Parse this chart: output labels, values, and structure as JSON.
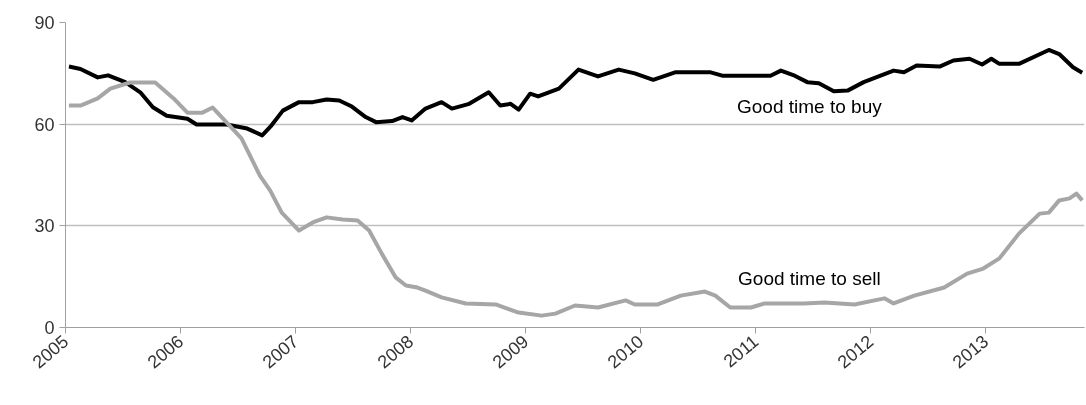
{
  "chart_data": {
    "type": "line",
    "xlim": [
      2005,
      2013.86
    ],
    "xticks": [
      2005,
      2006,
      2007,
      2008,
      2009,
      2010,
      2011,
      2012,
      2013
    ],
    "ylim": [
      0,
      90
    ],
    "yticks": [
      0,
      30,
      60,
      90
    ],
    "grid": "y",
    "marker": "none",
    "line_style": "solid",
    "series": [
      {
        "name": "Good time to buy",
        "color": "#000000",
        "x": [
          2005.03,
          2005.13,
          2005.28,
          2005.37,
          2005.52,
          2005.65,
          2005.76,
          2005.88,
          2006.06,
          2006.14,
          2006.4,
          2006.58,
          2006.71,
          2006.79,
          2006.89,
          2007.03,
          2007.15,
          2007.27,
          2007.38,
          2007.49,
          2007.61,
          2007.7,
          2007.84,
          2007.93,
          2008.01,
          2008.13,
          2008.27,
          2008.36,
          2008.51,
          2008.68,
          2008.78,
          2008.87,
          2008.94,
          2009.04,
          2009.11,
          2009.29,
          2009.46,
          2009.63,
          2009.81,
          2009.95,
          2010.11,
          2010.3,
          2010.61,
          2010.71,
          2011.02,
          2011.13,
          2011.22,
          2011.34,
          2011.45,
          2011.55,
          2011.68,
          2011.8,
          2011.94,
          2012.2,
          2012.29,
          2012.4,
          2012.6,
          2012.72,
          2012.86,
          2012.97,
          2013.05,
          2013.12,
          2013.29,
          2013.55,
          2013.64,
          2013.76,
          2013.84
        ],
        "values": [
          77,
          76.3,
          73.8,
          74.4,
          72.4,
          69.4,
          65,
          62.5,
          61.6,
          59.9,
          59.9,
          58.7,
          56.7,
          59.6,
          64,
          66.5,
          66.5,
          67.3,
          67,
          65.2,
          62.1,
          60.6,
          60.9,
          62.1,
          61.1,
          64.6,
          66.5,
          64.6,
          66,
          69.4,
          65.5,
          66,
          64.3,
          69,
          68.2,
          70.5,
          76.1,
          74.1,
          76.1,
          75,
          73.1,
          75.3,
          75.3,
          74.3,
          74.3,
          74.3,
          75.8,
          74.3,
          72.4,
          72.1,
          69.7,
          69.9,
          72.4,
          75.8,
          75.3,
          77.3,
          77,
          78.8,
          79.3,
          77.6,
          79.3,
          77.8,
          77.8,
          81.9,
          80.7,
          76.8,
          75.2
        ]
      },
      {
        "name": "Good time to sell",
        "color": "#a6a6a6",
        "x": [
          2005.03,
          2005.13,
          2005.28,
          2005.39,
          2005.56,
          2005.78,
          2005.94,
          2006.06,
          2006.19,
          2006.28,
          2006.4,
          2006.53,
          2006.69,
          2006.78,
          2006.88,
          2007.03,
          2007.15,
          2007.27,
          2007.41,
          2007.54,
          2007.64,
          2007.75,
          2007.87,
          2007.96,
          2008.06,
          2008.13,
          2008.27,
          2008.48,
          2008.74,
          2008.94,
          2009.14,
          2009.26,
          2009.43,
          2009.63,
          2009.87,
          2009.95,
          2010.15,
          2010.35,
          2010.56,
          2010.65,
          2010.78,
          2010.96,
          2011.08,
          2011.42,
          2011.6,
          2011.86,
          2012.12,
          2012.2,
          2012.38,
          2012.64,
          2012.84,
          2012.98,
          2013.12,
          2013.29,
          2013.47,
          2013.55,
          2013.64,
          2013.73,
          2013.79,
          2013.84
        ],
        "values": [
          65.5,
          65.5,
          67.6,
          70.5,
          72.3,
          72.3,
          67.6,
          63.4,
          63.4,
          64.9,
          60.5,
          55.8,
          44.8,
          40.4,
          33.9,
          28.6,
          31,
          32.5,
          31.9,
          31.6,
          28.6,
          21.8,
          14.8,
          12.4,
          11.8,
          10.9,
          8.9,
          7.1,
          6.8,
          4.4,
          3.5,
          4.1,
          6.5,
          5.9,
          8,
          6.8,
          6.8,
          9.4,
          10.6,
          9.4,
          5.9,
          5.9,
          7.1,
          7.1,
          7.4,
          6.8,
          8.6,
          7.1,
          9.4,
          11.8,
          15.9,
          17.4,
          20.4,
          27.7,
          33.6,
          33.9,
          37.5,
          38.1,
          39.5,
          37.5
        ]
      }
    ]
  }
}
